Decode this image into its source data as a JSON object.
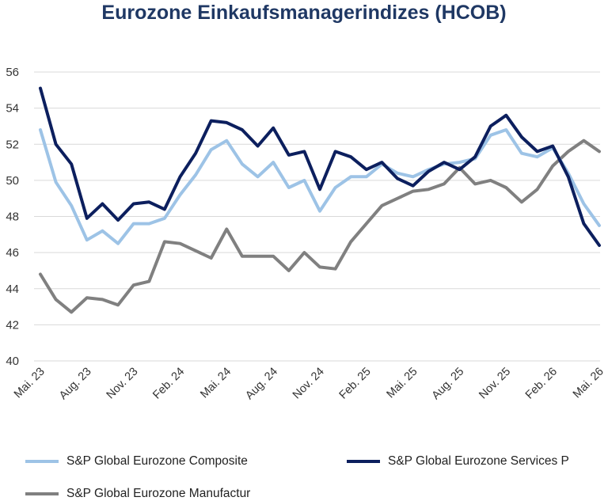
{
  "chart_data": {
    "type": "line",
    "title": "Eurozone Einkaufsmanagerindizes (HCOB)",
    "xlabel": "",
    "ylabel": "",
    "ylim": [
      40,
      56
    ],
    "yticks": [
      "40",
      "42",
      "44",
      "46",
      "48",
      "50",
      "52",
      "54",
      "56"
    ],
    "grid": true,
    "legend_position": "bottom",
    "x_tick_labels": [
      "Mai. 23",
      "Aug. 23",
      "Nov. 23",
      "Feb. 24",
      "Mai. 24",
      "Aug. 24",
      "Nov. 24",
      "Feb. 25",
      "Mai. 25",
      "Aug. 25",
      "Nov. 25",
      "Feb. 26",
      "Mai. 26"
    ],
    "series": [
      {
        "name": "S&P Global Eurozone Composite",
        "color": "#9dc3e6",
        "values": [
          52.8,
          49.9,
          48.6,
          46.7,
          47.2,
          46.5,
          47.6,
          47.6,
          47.9,
          49.2,
          50.3,
          51.7,
          52.2,
          50.9,
          50.2,
          51.0,
          49.6,
          50.0,
          48.3,
          49.6,
          50.2,
          50.2,
          50.9,
          50.4,
          50.2,
          50.6,
          50.9,
          51.0,
          51.2,
          52.5,
          52.8,
          51.5,
          51.3,
          51.8,
          50.4,
          48.7,
          47.5
        ]
      },
      {
        "name": "S&P Global Eurozone Services P",
        "color": "#0c1f5e",
        "values": [
          55.1,
          52.0,
          50.9,
          47.9,
          48.7,
          47.8,
          48.7,
          48.8,
          48.4,
          50.2,
          51.5,
          53.3,
          53.2,
          52.8,
          51.9,
          52.9,
          51.4,
          51.6,
          49.5,
          51.6,
          51.3,
          50.6,
          51.0,
          50.1,
          49.7,
          50.5,
          51.0,
          50.6,
          51.3,
          53.0,
          53.6,
          52.4,
          51.6,
          51.9,
          50.2,
          47.6,
          46.4
        ]
      },
      {
        "name": "S&P Global Eurozone Manufactur",
        "color": "#808080",
        "values": [
          44.8,
          43.4,
          42.7,
          43.5,
          43.4,
          43.1,
          44.2,
          44.4,
          46.6,
          46.5,
          46.1,
          45.7,
          47.3,
          45.8,
          45.8,
          45.8,
          45.0,
          46.0,
          45.2,
          45.1,
          46.6,
          47.6,
          48.6,
          49.0,
          49.4,
          49.5,
          49.8,
          50.7,
          49.8,
          50.0,
          49.6,
          48.8,
          49.5,
          50.8,
          51.6,
          52.2,
          51.6
        ]
      }
    ]
  }
}
